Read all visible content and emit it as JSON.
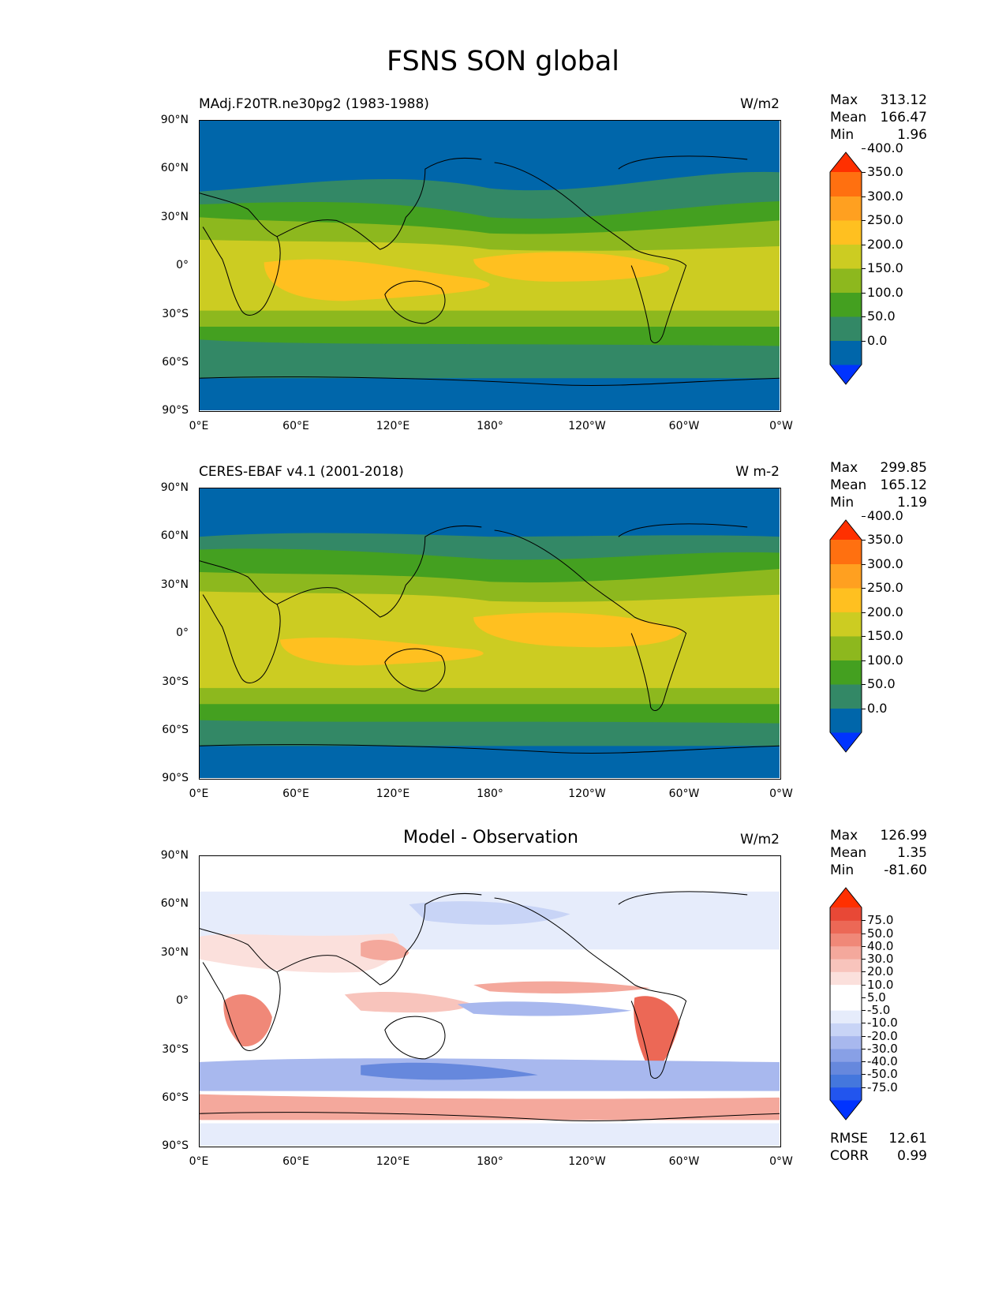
{
  "title": "FSNS SON global",
  "panels": [
    {
      "id": "model",
      "left_title": "MAdj.F20TR.ne30pg2 (1983-1988)",
      "center_title": "",
      "units": "W/m2",
      "stats": [
        {
          "key": "Max",
          "value": "313.12"
        },
        {
          "key": "Mean",
          "value": "166.47"
        },
        {
          "key": "Min",
          "value": "1.96"
        }
      ],
      "colorbar": {
        "colors": [
          "#0033ff",
          "#0066aa",
          "#338866",
          "#44a020",
          "#8db81e",
          "#cccc22",
          "#ffc020",
          "#ffa020",
          "#ff7010",
          "#ff3000"
        ],
        "labels": [
          "0.0",
          "50.0",
          "100.0",
          "150.0",
          "200.0",
          "250.0",
          "300.0",
          "350.0",
          "400.0"
        ]
      }
    },
    {
      "id": "obs",
      "left_title": "CERES-EBAF v4.1 (2001-2018)",
      "center_title": "",
      "units": "W m-2",
      "stats": [
        {
          "key": "Max",
          "value": "299.85"
        },
        {
          "key": "Mean",
          "value": "165.12"
        },
        {
          "key": "Min",
          "value": "1.19"
        }
      ],
      "colorbar": {
        "colors": [
          "#0033ff",
          "#0066aa",
          "#338866",
          "#44a020",
          "#8db81e",
          "#cccc22",
          "#ffc020",
          "#ffa020",
          "#ff7010",
          "#ff3000"
        ],
        "labels": [
          "0.0",
          "50.0",
          "100.0",
          "150.0",
          "200.0",
          "250.0",
          "300.0",
          "350.0",
          "400.0"
        ]
      }
    },
    {
      "id": "diff",
      "left_title": "",
      "center_title": "Model - Observation",
      "units": "W/m2",
      "stats": [
        {
          "key": "Max",
          "value": "126.99"
        },
        {
          "key": "Mean",
          "value": "1.35"
        },
        {
          "key": "Min",
          "value": "-81.60"
        }
      ],
      "extra_stats": [
        {
          "key": "RMSE",
          "value": "12.61"
        },
        {
          "key": "CORR",
          "value": "0.99"
        }
      ],
      "colorbar": {
        "colors": [
          "#0033ff",
          "#2255ee",
          "#4477dd",
          "#6688dd",
          "#88a0e6",
          "#a8b8ee",
          "#c8d4f6",
          "#e6ecfb",
          "#ffffff",
          "#ffffff",
          "#fbe0dc",
          "#f8c4bc",
          "#f4a89c",
          "#f08878",
          "#ec6856",
          "#e84836",
          "#ff3000"
        ],
        "labels": [
          "-75.0",
          "-50.0",
          "-40.0",
          "-30.0",
          "-20.0",
          "-10.0",
          "-5.0",
          "5.0",
          "10.0",
          "20.0",
          "30.0",
          "40.0",
          "50.0",
          "75.0"
        ]
      }
    }
  ],
  "axes": {
    "lat_labels": [
      "90°N",
      "60°N",
      "30°N",
      "0°",
      "30°S",
      "60°S",
      "90°S"
    ],
    "lon_labels": [
      "0°E",
      "60°E",
      "120°E",
      "180°",
      "120°W",
      "60°W",
      "0°W"
    ]
  },
  "palette": {
    "ocean_deep": "#0066aa",
    "teal": "#338866",
    "green": "#44a020",
    "olive": "#8db81e",
    "yellow": "#cccc22",
    "gold": "#ffc020"
  }
}
